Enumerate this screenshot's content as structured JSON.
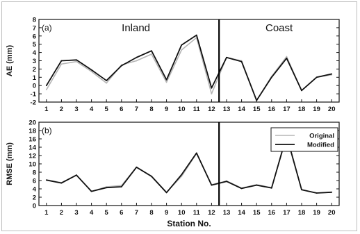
{
  "chart_data": [
    {
      "type": "line",
      "panel_label": "(a)",
      "ylabel": "AE (mm)",
      "xlabel": "",
      "region_labels": [
        "Inland",
        "Coast"
      ],
      "divider_x": 12.5,
      "x": [
        1,
        2,
        3,
        4,
        5,
        6,
        7,
        8,
        9,
        10,
        11,
        12,
        13,
        14,
        15,
        16,
        17,
        18,
        19,
        20
      ],
      "ylim": [
        -2,
        8
      ],
      "yticks": [
        -2,
        -1,
        0,
        1,
        2,
        3,
        4,
        5,
        6,
        7,
        8
      ],
      "series": [
        {
          "style": "original",
          "color": "#b5b5b5",
          "values": [
            -0.5,
            2.6,
            2.9,
            1.7,
            0.3,
            2.5,
            3.0,
            3.8,
            0.4,
            4.3,
            5.8,
            -1.0,
            3.4,
            3.0,
            -1.8,
            1.1,
            3.5,
            -0.6,
            1.0,
            1.3
          ]
        },
        {
          "style": "modified",
          "color": "#111111",
          "values": [
            0.0,
            3.0,
            3.1,
            1.9,
            0.6,
            2.4,
            3.4,
            4.2,
            0.7,
            4.9,
            6.1,
            -0.3,
            3.4,
            2.9,
            -1.8,
            1.0,
            3.3,
            -0.6,
            1.0,
            1.4
          ]
        }
      ]
    },
    {
      "type": "line",
      "panel_label": "(b)",
      "ylabel": "RMSE (mm)",
      "xlabel": "Station No.",
      "divider_x": 12.5,
      "x": [
        1,
        2,
        3,
        4,
        5,
        6,
        7,
        8,
        9,
        10,
        11,
        12,
        13,
        14,
        15,
        16,
        17,
        18,
        19,
        20
      ],
      "ylim": [
        0,
        20
      ],
      "yticks": [
        0,
        2,
        4,
        6,
        8,
        10,
        12,
        14,
        16,
        18,
        20
      ],
      "legend": {
        "position": "top-right",
        "entries": [
          "Original",
          "Modified"
        ]
      },
      "series": [
        {
          "name": "Original",
          "color": "#b5b5b5",
          "values": [
            6.2,
            5.5,
            7.3,
            3.4,
            4.5,
            4.8,
            9.2,
            7.1,
            3.2,
            7.0,
            12.5,
            5.0,
            5.9,
            4.2,
            5.0,
            4.3,
            16.4,
            3.8,
            3.0,
            3.2
          ]
        },
        {
          "name": "Modified",
          "color": "#111111",
          "values": [
            6.1,
            5.4,
            7.3,
            3.4,
            4.3,
            4.5,
            9.2,
            7.0,
            3.1,
            7.4,
            12.6,
            4.9,
            5.8,
            4.1,
            4.9,
            4.2,
            16.8,
            3.8,
            3.0,
            3.2
          ]
        }
      ]
    }
  ]
}
